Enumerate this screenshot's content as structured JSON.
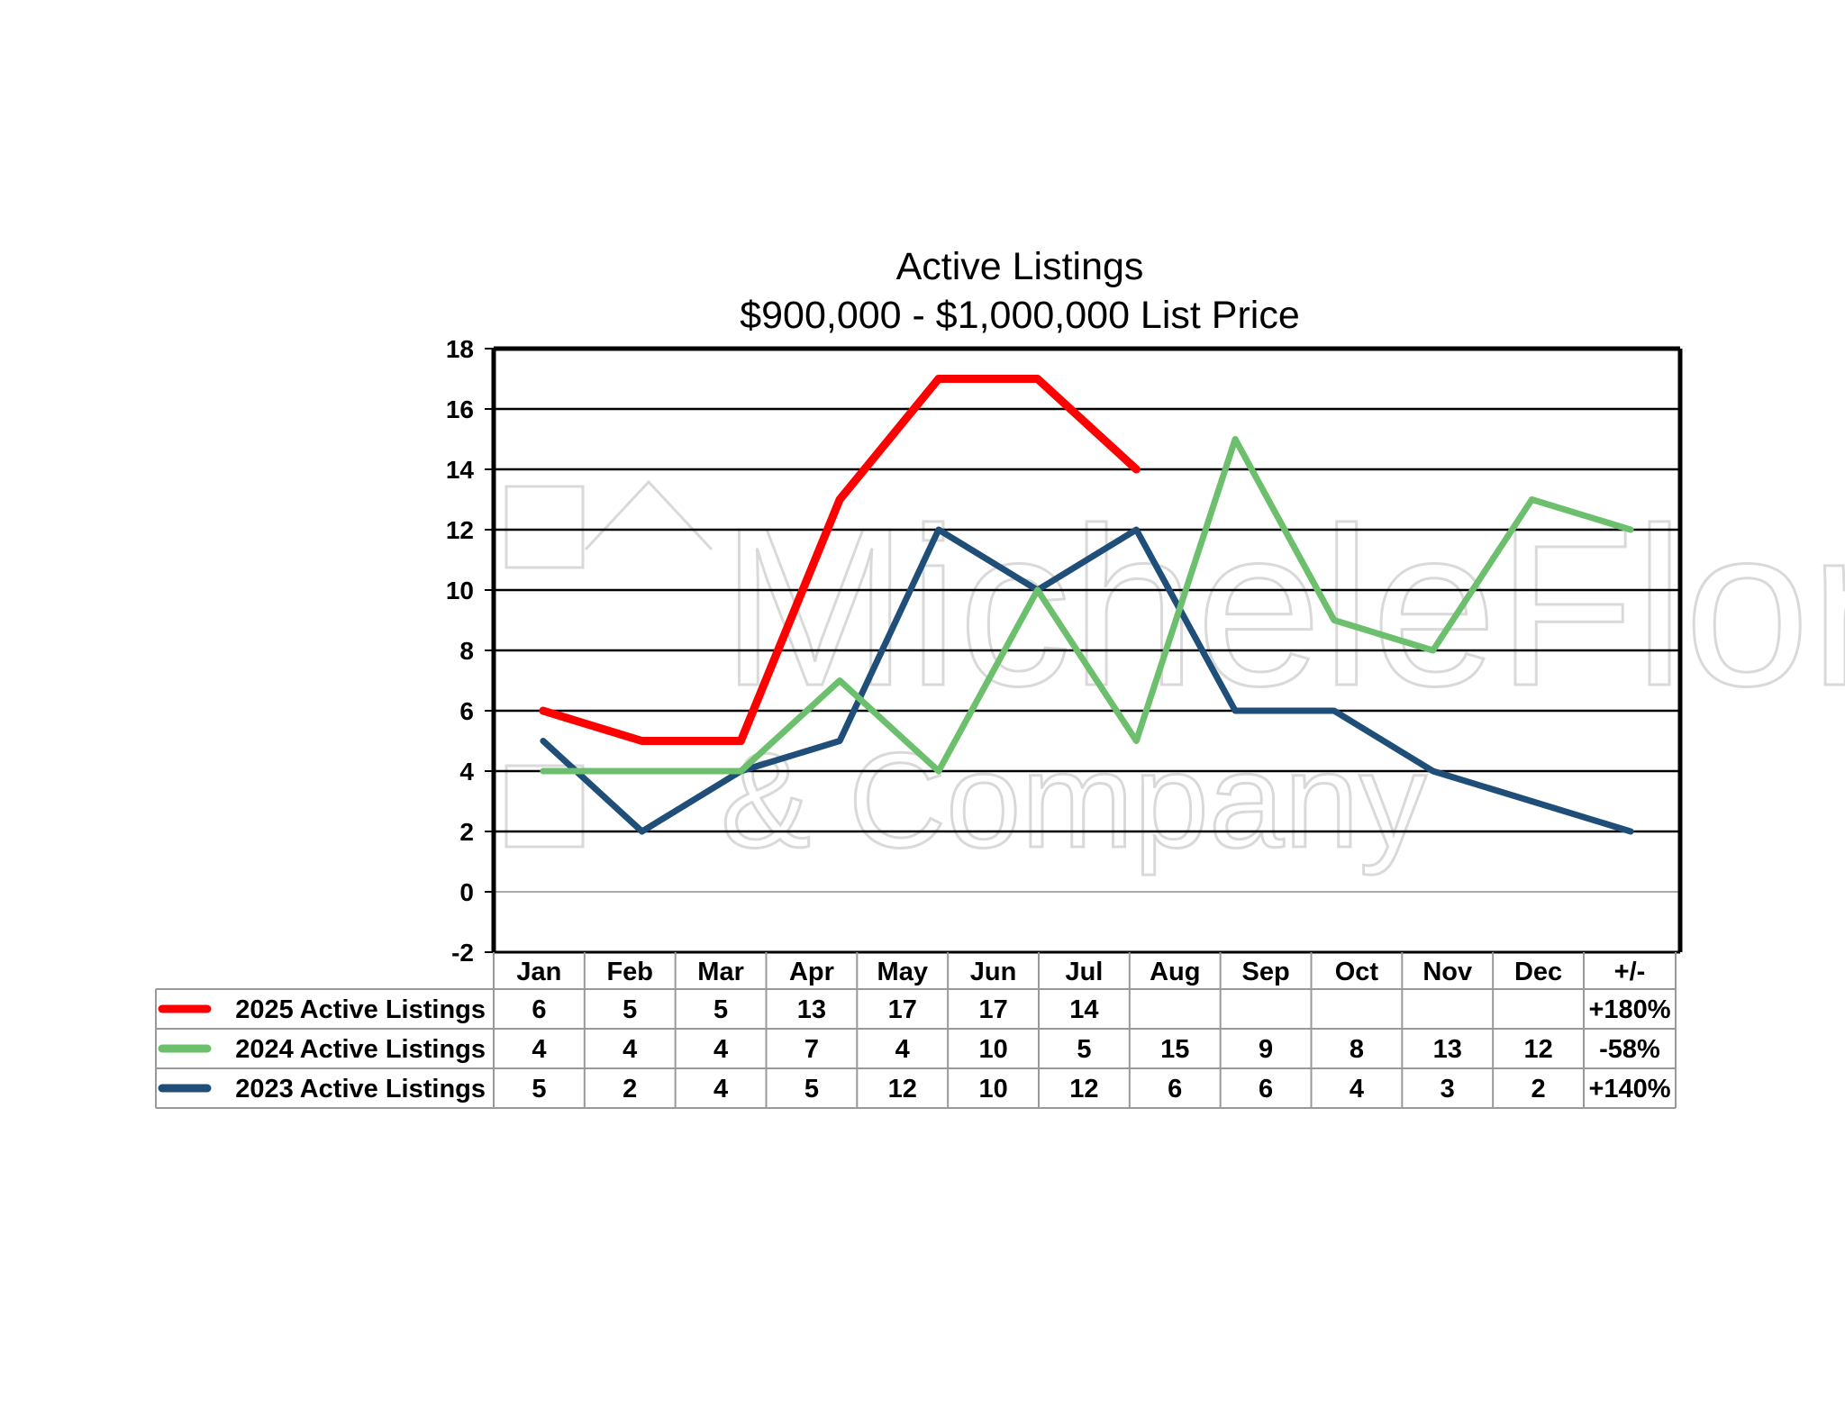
{
  "chart_data": {
    "type": "line",
    "title": "Active Listings",
    "subtitle": "$900,000 - $1,000,000 List Price",
    "categories": [
      "Jan",
      "Feb",
      "Mar",
      "Apr",
      "May",
      "Jun",
      "Jul",
      "Aug",
      "Sep",
      "Oct",
      "Nov",
      "Dec"
    ],
    "change_header": "+/-",
    "ylim": [
      -2,
      18
    ],
    "yticks": [
      -2,
      0,
      2,
      4,
      6,
      8,
      10,
      12,
      14,
      16,
      18
    ],
    "grid": true,
    "series": [
      {
        "name": "2025 Active Listings",
        "color": "#ff0000",
        "values": [
          6,
          5,
          5,
          13,
          17,
          17,
          14,
          null,
          null,
          null,
          null,
          null
        ],
        "change": "+180%"
      },
      {
        "name": "2024 Active Listings",
        "color": "#6cbf6c",
        "values": [
          4,
          4,
          4,
          7,
          4,
          10,
          5,
          15,
          9,
          8,
          13,
          12
        ],
        "change": "-58%"
      },
      {
        "name": "2023 Active Listings",
        "color": "#1f4e79",
        "values": [
          5,
          2,
          4,
          5,
          12,
          10,
          12,
          6,
          6,
          4,
          3,
          2
        ],
        "change": "+140%"
      }
    ]
  },
  "watermark": {
    "line1": "MicheleFlory",
    "line2": "& Company"
  }
}
